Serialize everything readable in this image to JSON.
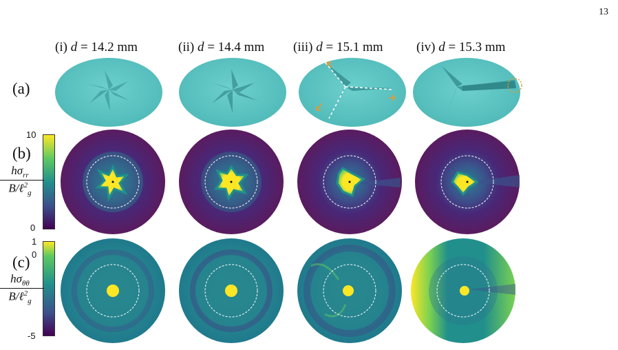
{
  "page_number": "13",
  "columns": [
    {
      "prefix": "(i) ",
      "var": "d",
      "value": " = 14.2 mm"
    },
    {
      "prefix": "(ii) ",
      "var": "d",
      "value": " = 14.4 mm"
    },
    {
      "prefix": "(iii) ",
      "var": "d",
      "value": " = 15.1 mm"
    },
    {
      "prefix": "(iv) ",
      "var": "d",
      "value": " = 15.3 mm"
    }
  ],
  "rows": {
    "a": "(a)",
    "b": "(b)",
    "c": "(c)"
  },
  "colorbar_b": {
    "max": "10",
    "min": "0",
    "label_num": "hσ",
    "label_num_sub": "rr",
    "label_den": "B/ℓ",
    "label_den_sub": "g",
    "label_den_sup": "2"
  },
  "colorbar_c": {
    "max": "1",
    "zero": "0",
    "min": "-5",
    "label_num": "hσ",
    "label_num_sub": "θθ",
    "label_den": "B/ℓ",
    "label_den_sub": "g",
    "label_den_sup": "2"
  },
  "colors": {
    "sheet": "#5ec6c4",
    "viridis_low": "#440154",
    "viridis_mid": "#21908c",
    "viridis_high": "#fde725",
    "annotation_arrow": "#e69a2e"
  }
}
